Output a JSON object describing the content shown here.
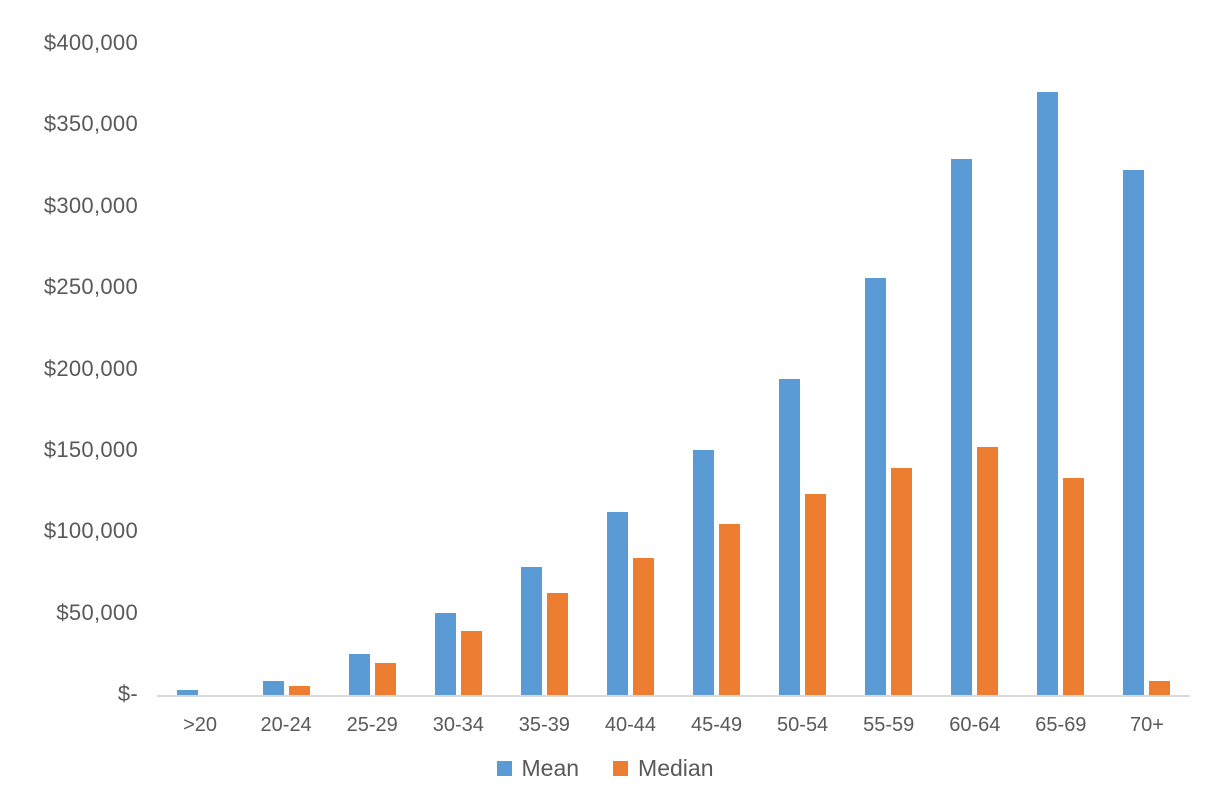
{
  "chart_data": {
    "type": "bar",
    "title": "",
    "xlabel": "",
    "ylabel": "",
    "categories": [
      ">20",
      "20-24",
      "25-29",
      "30-34",
      "35-39",
      "40-44",
      "45-49",
      "50-54",
      "55-59",
      "60-64",
      "65-69",
      "70+"
    ],
    "series": [
      {
        "name": "Mean",
        "color": "#5B9BD5",
        "values": [
          4000,
          9000,
          26000,
          51000,
          79000,
          113000,
          151000,
          195000,
          257000,
          330000,
          371000,
          323000
        ]
      },
      {
        "name": "Median",
        "color": "#ED7D31",
        "values": [
          0,
          6000,
          20000,
          40000,
          63000,
          85000,
          106000,
          124000,
          140000,
          153000,
          134000,
          9000
        ]
      }
    ],
    "ylim": [
      0,
      400000
    ],
    "y_ticks": [
      {
        "value": 0,
        "label": "$-"
      },
      {
        "value": 50000,
        "label": "$50,000"
      },
      {
        "value": 100000,
        "label": "$100,000"
      },
      {
        "value": 150000,
        "label": "$150,000"
      },
      {
        "value": 200000,
        "label": "$200,000"
      },
      {
        "value": 250000,
        "label": "$250,000"
      },
      {
        "value": 300000,
        "label": "$300,000"
      },
      {
        "value": 350000,
        "label": "$350,000"
      },
      {
        "value": 400000,
        "label": "$400,000"
      }
    ],
    "grid": false,
    "legend_position": "bottom"
  },
  "colors": {
    "mean": "#5B9BD5",
    "median": "#ED7D31",
    "axis_line": "#D9D9D9",
    "label_text": "#595959",
    "background": "#FFFFFF"
  }
}
